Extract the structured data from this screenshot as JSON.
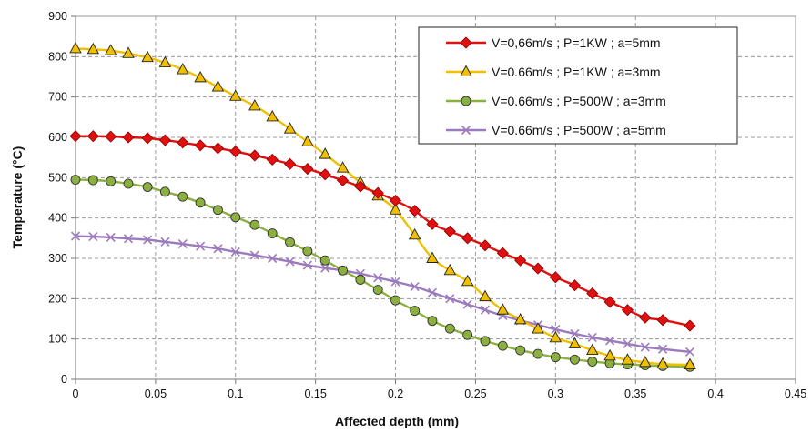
{
  "chart_data": {
    "type": "line",
    "xlabel": "Affected depth (mm)",
    "ylabel": "Temperature (°C)",
    "xlim": [
      0,
      0.45
    ],
    "ylim": [
      0,
      900
    ],
    "xticks": [
      0,
      0.05,
      0.1,
      0.15,
      0.2,
      0.25,
      0.3,
      0.35,
      0.4,
      0.45
    ],
    "xtick_labels": [
      "0",
      "0.05",
      "0.1",
      "0.15",
      "0.2",
      "0.25",
      "0.3",
      "0.35",
      "0.4",
      "0.45"
    ],
    "yticks": [
      0,
      100,
      200,
      300,
      400,
      500,
      600,
      700,
      800,
      900
    ],
    "ytick_labels": [
      "0",
      "100",
      "200",
      "300",
      "400",
      "500",
      "600",
      "700",
      "800",
      "900"
    ],
    "grid": true,
    "legend_position": "top-right",
    "x": [
      0,
      0.011,
      0.022,
      0.033,
      0.045,
      0.056,
      0.067,
      0.078,
      0.089,
      0.1,
      0.112,
      0.123,
      0.134,
      0.145,
      0.156,
      0.167,
      0.178,
      0.189,
      0.2,
      0.212,
      0.223,
      0.234,
      0.245,
      0.256,
      0.267,
      0.278,
      0.289,
      0.3,
      0.312,
      0.323,
      0.334,
      0.345,
      0.356,
      0.367,
      0.384
    ],
    "series": [
      {
        "name": "V=0,66m/s ; P=1KW ; a=5mm",
        "color": "#e01010",
        "marker": "diamond",
        "values": [
          603,
          603,
          602,
          600,
          598,
          593,
          587,
          580,
          573,
          565,
          555,
          545,
          534,
          522,
          508,
          493,
          478,
          462,
          443,
          418,
          385,
          367,
          350,
          332,
          313,
          295,
          275,
          253,
          233,
          213,
          192,
          172,
          153,
          147,
          133
        ]
      },
      {
        "name": "V=0.66m/s ; P=1KW ; a=3mm",
        "color": "#f0c000",
        "marker": "triangle",
        "values": [
          820,
          818,
          815,
          808,
          798,
          785,
          768,
          748,
          725,
          702,
          678,
          651,
          621,
          589,
          558,
          524,
          488,
          455,
          420,
          358,
          300,
          270,
          243,
          205,
          172,
          148,
          125,
          103,
          88,
          72,
          58,
          48,
          42,
          38,
          36
        ]
      },
      {
        "name": "V=0.66m/s ; P=500W ; a=3mm",
        "color": "#8cb040",
        "marker": "circle",
        "values": [
          495,
          494,
          491,
          485,
          477,
          465,
          453,
          438,
          420,
          402,
          383,
          362,
          340,
          318,
          295,
          270,
          247,
          222,
          196,
          170,
          145,
          126,
          110,
          95,
          83,
          72,
          63,
          55,
          49,
          44,
          40,
          37,
          35,
          33,
          31
        ]
      },
      {
        "name": "V=0.66m/s ; P=500W ; a=5mm",
        "color": "#9b7bbd",
        "marker": "x",
        "values": [
          355,
          354,
          352,
          349,
          346,
          341,
          336,
          330,
          324,
          316,
          308,
          300,
          292,
          283,
          276,
          270,
          262,
          252,
          242,
          230,
          215,
          200,
          186,
          172,
          158,
          146,
          135,
          124,
          113,
          104,
          96,
          88,
          80,
          75,
          68
        ]
      }
    ]
  }
}
